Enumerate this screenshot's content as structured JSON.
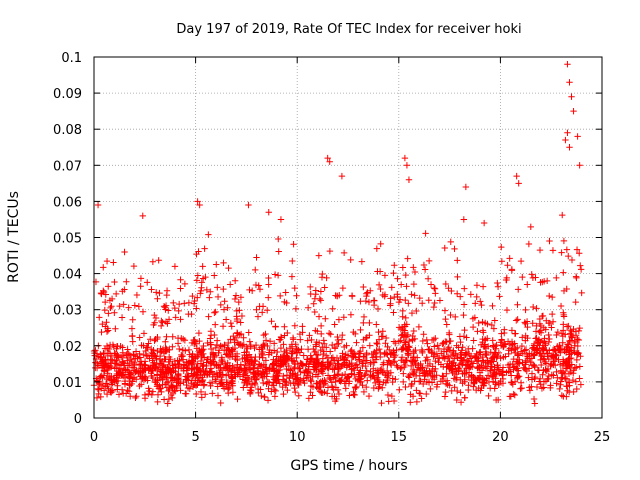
{
  "chart_data": {
    "type": "scatter",
    "title": "Day 197 of 2019, Rate Of TEC Index for receiver hoki",
    "xlabel": "GPS time / hours",
    "ylabel": "ROTI / TECUs",
    "xlim": [
      0,
      25
    ],
    "ylim": [
      0,
      0.1
    ],
    "x_ticks": [
      0,
      5,
      10,
      15,
      20,
      25
    ],
    "y_ticks": [
      0,
      0.01,
      0.02,
      0.03,
      0.04,
      0.05,
      0.06,
      0.07,
      0.08,
      0.09,
      0.1
    ],
    "x_tick_labels": [
      "0",
      "5",
      "10",
      "15",
      "20",
      "25"
    ],
    "y_tick_labels": [
      "0",
      "0.01",
      "0.02",
      "0.03",
      "0.04",
      "0.05",
      "0.06",
      "0.07",
      "0.08",
      "0.09",
      "0.1"
    ],
    "grid": true,
    "marker": "+",
    "marker_color": "#ff0000",
    "data_range_x": [
      0,
      24
    ],
    "notable_points": [
      {
        "x": 11.5,
        "y": 0.072
      },
      {
        "x": 11.6,
        "y": 0.071
      },
      {
        "x": 12.2,
        "y": 0.067
      },
      {
        "x": 15.3,
        "y": 0.072
      },
      {
        "x": 15.4,
        "y": 0.07
      },
      {
        "x": 15.5,
        "y": 0.066
      },
      {
        "x": 18.3,
        "y": 0.064
      },
      {
        "x": 20.8,
        "y": 0.067
      },
      {
        "x": 20.9,
        "y": 0.065
      },
      {
        "x": 23.3,
        "y": 0.098
      },
      {
        "x": 23.4,
        "y": 0.093
      },
      {
        "x": 23.5,
        "y": 0.089
      },
      {
        "x": 23.6,
        "y": 0.085
      },
      {
        "x": 23.2,
        "y": 0.077
      },
      {
        "x": 23.3,
        "y": 0.079
      },
      {
        "x": 23.4,
        "y": 0.075
      },
      {
        "x": 23.8,
        "y": 0.078
      },
      {
        "x": 23.9,
        "y": 0.07
      },
      {
        "x": 0.2,
        "y": 0.059
      },
      {
        "x": 5.1,
        "y": 0.06
      },
      {
        "x": 5.2,
        "y": 0.059
      },
      {
        "x": 7.6,
        "y": 0.059
      },
      {
        "x": 2.4,
        "y": 0.056
      },
      {
        "x": 8.6,
        "y": 0.057
      },
      {
        "x": 9.2,
        "y": 0.055
      },
      {
        "x": 18.2,
        "y": 0.055
      },
      {
        "x": 19.2,
        "y": 0.054
      }
    ],
    "series": [
      {
        "name": "",
        "hourly_envelope": [
          {
            "hour": 0,
            "base": 0.013,
            "spread": 0.009,
            "peak": 0.045
          },
          {
            "hour": 1,
            "base": 0.013,
            "spread": 0.009,
            "peak": 0.046
          },
          {
            "hour": 2,
            "base": 0.013,
            "spread": 0.01,
            "peak": 0.05
          },
          {
            "hour": 3,
            "base": 0.013,
            "spread": 0.009,
            "peak": 0.045
          },
          {
            "hour": 4,
            "base": 0.013,
            "spread": 0.009,
            "peak": 0.043
          },
          {
            "hour": 5,
            "base": 0.014,
            "spread": 0.01,
            "peak": 0.052
          },
          {
            "hour": 6,
            "base": 0.014,
            "spread": 0.009,
            "peak": 0.046
          },
          {
            "hour": 7,
            "base": 0.014,
            "spread": 0.009,
            "peak": 0.045
          },
          {
            "hour": 8,
            "base": 0.014,
            "spread": 0.01,
            "peak": 0.05
          },
          {
            "hour": 9,
            "base": 0.015,
            "spread": 0.01,
            "peak": 0.052
          },
          {
            "hour": 10,
            "base": 0.014,
            "spread": 0.009,
            "peak": 0.046
          },
          {
            "hour": 11,
            "base": 0.014,
            "spread": 0.01,
            "peak": 0.048
          },
          {
            "hour": 12,
            "base": 0.014,
            "spread": 0.01,
            "peak": 0.05
          },
          {
            "hour": 13,
            "base": 0.014,
            "spread": 0.01,
            "peak": 0.048
          },
          {
            "hour": 14,
            "base": 0.015,
            "spread": 0.011,
            "peak": 0.052
          },
          {
            "hour": 15,
            "base": 0.016,
            "spread": 0.012,
            "peak": 0.058
          },
          {
            "hour": 16,
            "base": 0.015,
            "spread": 0.011,
            "peak": 0.052
          },
          {
            "hour": 17,
            "base": 0.015,
            "spread": 0.01,
            "peak": 0.05
          },
          {
            "hour": 18,
            "base": 0.014,
            "spread": 0.01,
            "peak": 0.048
          },
          {
            "hour": 19,
            "base": 0.014,
            "spread": 0.01,
            "peak": 0.047
          },
          {
            "hour": 20,
            "base": 0.016,
            "spread": 0.011,
            "peak": 0.052
          },
          {
            "hour": 21,
            "base": 0.017,
            "spread": 0.012,
            "peak": 0.056
          },
          {
            "hour": 22,
            "base": 0.016,
            "spread": 0.012,
            "peak": 0.055
          },
          {
            "hour": 23,
            "base": 0.017,
            "spread": 0.013,
            "peak": 0.06
          }
        ]
      }
    ]
  }
}
